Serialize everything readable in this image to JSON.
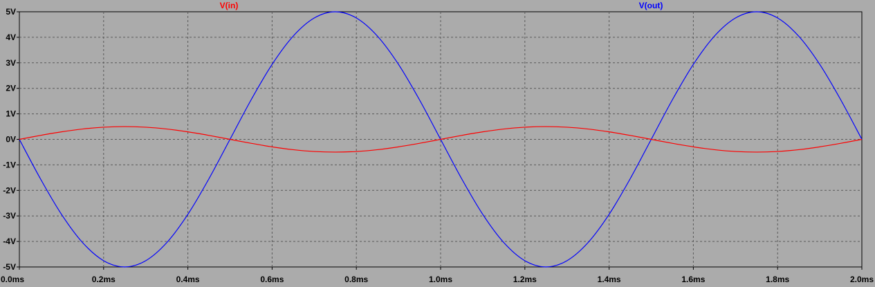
{
  "chart_data": {
    "type": "line",
    "title": "",
    "xlabel": "",
    "ylabel": "",
    "xlim": [
      0,
      2.0
    ],
    "ylim": [
      -5,
      5
    ],
    "grid": true,
    "x_ticks": [
      "0.0ms",
      "0.2ms",
      "0.4ms",
      "0.6ms",
      "0.8ms",
      "1.0ms",
      "1.2ms",
      "1.4ms",
      "1.6ms",
      "1.8ms",
      "2.0ms"
    ],
    "x_tick_values": [
      0,
      0.2,
      0.4,
      0.6,
      0.8,
      1.0,
      1.2,
      1.4,
      1.6,
      1.8,
      2.0
    ],
    "y_ticks": [
      "5V",
      "4V",
      "3V",
      "2V",
      "1V",
      "0V",
      "-1V",
      "-2V",
      "-3V",
      "-4V",
      "-5V"
    ],
    "y_tick_values": [
      5,
      4,
      3,
      2,
      1,
      0,
      -1,
      -2,
      -3,
      -4,
      -5
    ],
    "x": [
      0,
      0.05,
      0.1,
      0.15,
      0.2,
      0.25,
      0.3,
      0.35,
      0.4,
      0.45,
      0.5,
      0.55,
      0.6,
      0.65,
      0.7,
      0.75,
      0.8,
      0.85,
      0.9,
      0.95,
      1.0,
      1.05,
      1.1,
      1.15,
      1.2,
      1.25,
      1.3,
      1.35,
      1.4,
      1.45,
      1.5,
      1.55,
      1.6,
      1.65,
      1.7,
      1.75,
      1.8,
      1.85,
      1.9,
      1.95,
      2.0
    ],
    "series": [
      {
        "name": "V(in)",
        "color": "#ff0000",
        "values": [
          0,
          0.155,
          0.294,
          0.405,
          0.476,
          0.5,
          0.476,
          0.405,
          0.294,
          0.155,
          0,
          -0.155,
          -0.294,
          -0.405,
          -0.476,
          -0.5,
          -0.476,
          -0.405,
          -0.294,
          -0.155,
          0,
          0.155,
          0.294,
          0.405,
          0.476,
          0.5,
          0.476,
          0.405,
          0.294,
          0.155,
          0,
          -0.155,
          -0.294,
          -0.405,
          -0.476,
          -0.5,
          -0.476,
          -0.405,
          -0.294,
          -0.155,
          0
        ]
      },
      {
        "name": "V(out)",
        "color": "#0000ff",
        "values": [
          0,
          -1.545,
          -2.939,
          -4.045,
          -4.755,
          -5,
          -4.755,
          -4.045,
          -2.939,
          -1.545,
          0,
          1.545,
          2.939,
          4.045,
          4.755,
          5,
          4.755,
          4.045,
          2.939,
          1.545,
          0,
          -1.545,
          -2.939,
          -4.045,
          -4.755,
          -5,
          -4.755,
          -4.045,
          -2.939,
          -1.545,
          0,
          1.545,
          2.939,
          4.045,
          4.755,
          5,
          4.755,
          4.045,
          2.939,
          1.545,
          0
        ]
      }
    ]
  }
}
